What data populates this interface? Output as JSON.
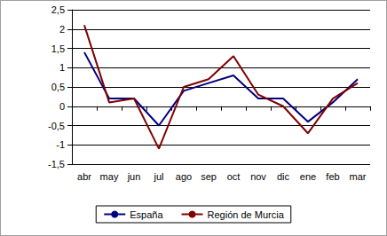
{
  "chart_data": {
    "type": "line",
    "categories": [
      "abr",
      "may",
      "jun",
      "jul",
      "ago",
      "sep",
      "oct",
      "nov",
      "dic",
      "ene",
      "feb",
      "mar"
    ],
    "series": [
      {
        "name": "España",
        "color": "#000080",
        "values": [
          1.4,
          0.2,
          0.2,
          -0.5,
          0.4,
          0.6,
          0.8,
          0.2,
          0.2,
          -0.4,
          0.1,
          0.7
        ]
      },
      {
        "name": "Región de Murcia",
        "color": "#800000",
        "values": [
          2.1,
          0.1,
          0.2,
          -1.1,
          0.5,
          0.7,
          1.3,
          0.3,
          0.0,
          -0.7,
          0.2,
          0.6
        ]
      }
    ],
    "ylim": [
      -1.5,
      2.5
    ],
    "yticks": [
      {
        "value": -1.5,
        "label": "-1,5"
      },
      -1,
      {
        "value": -0.5,
        "label": "-0,5"
      },
      0,
      {
        "value": 0.5,
        "label": "0,5"
      },
      1,
      {
        "value": 1.5,
        "label": "1,5"
      },
      2,
      {
        "value": 2.5,
        "label": "2,5"
      }
    ],
    "grid": true,
    "legend": "bottom"
  }
}
